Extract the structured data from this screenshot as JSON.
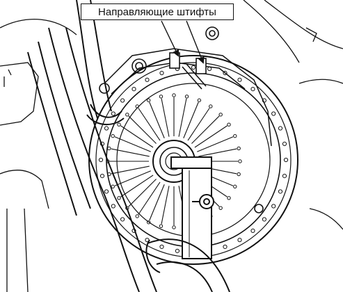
{
  "callout": {
    "label": "Направляющие штифты"
  },
  "colors": {
    "ink": "#111111",
    "paper": "#ffffff"
  }
}
